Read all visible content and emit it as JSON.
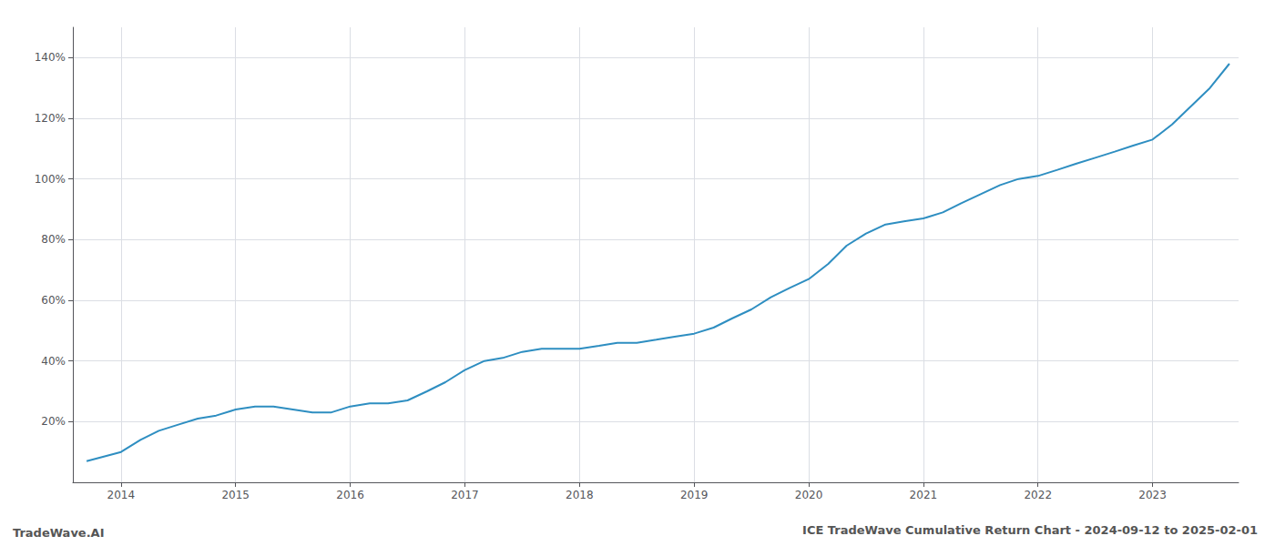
{
  "chart_data": {
    "type": "line",
    "title": "ICE TradeWave Cumulative Return Chart - 2024-09-12 to 2025-02-01",
    "annotations": [
      "TradeWave.AI"
    ],
    "color": "#2e8ec1",
    "grid": true,
    "x": [
      2013.7,
      2014.0,
      2014.17,
      2014.33,
      2014.5,
      2014.67,
      2014.83,
      2015.0,
      2015.17,
      2015.33,
      2015.5,
      2015.67,
      2015.83,
      2016.0,
      2016.17,
      2016.33,
      2016.5,
      2016.67,
      2016.83,
      2017.0,
      2017.17,
      2017.33,
      2017.5,
      2017.67,
      2017.83,
      2018.0,
      2018.17,
      2018.33,
      2018.5,
      2018.67,
      2018.83,
      2019.0,
      2019.17,
      2019.33,
      2019.5,
      2019.67,
      2019.83,
      2020.0,
      2020.17,
      2020.33,
      2020.5,
      2020.67,
      2020.83,
      2021.0,
      2021.17,
      2021.33,
      2021.5,
      2021.67,
      2021.83,
      2022.0,
      2022.17,
      2022.33,
      2022.5,
      2022.67,
      2022.83,
      2023.0,
      2023.17,
      2023.5,
      2023.67
    ],
    "values": [
      7,
      10,
      14,
      17,
      19,
      21,
      22,
      24,
      25,
      25,
      24,
      23,
      23,
      25,
      26,
      26,
      27,
      30,
      33,
      37,
      40,
      41,
      43,
      44,
      44,
      44,
      45,
      46,
      46,
      47,
      48,
      49,
      51,
      54,
      57,
      61,
      64,
      67,
      72,
      78,
      82,
      85,
      86,
      87,
      89,
      92,
      95,
      98,
      100,
      101,
      103,
      105,
      107,
      109,
      111,
      113,
      118,
      130,
      138
    ],
    "xlim": [
      2013.58,
      2023.75
    ],
    "xticks": [
      2014,
      2015,
      2016,
      2017,
      2018,
      2019,
      2020,
      2021,
      2022,
      2023
    ],
    "ylim": [
      0,
      150
    ],
    "yticks": [
      {
        "value": 20,
        "label": "20%"
      },
      {
        "value": 40,
        "label": "40%"
      },
      {
        "value": 60,
        "label": "60%"
      },
      {
        "value": 80,
        "label": "80%"
      },
      {
        "value": 100,
        "label": "100%"
      },
      {
        "value": 120,
        "label": "120%"
      },
      {
        "value": 140,
        "label": "140%"
      }
    ]
  }
}
